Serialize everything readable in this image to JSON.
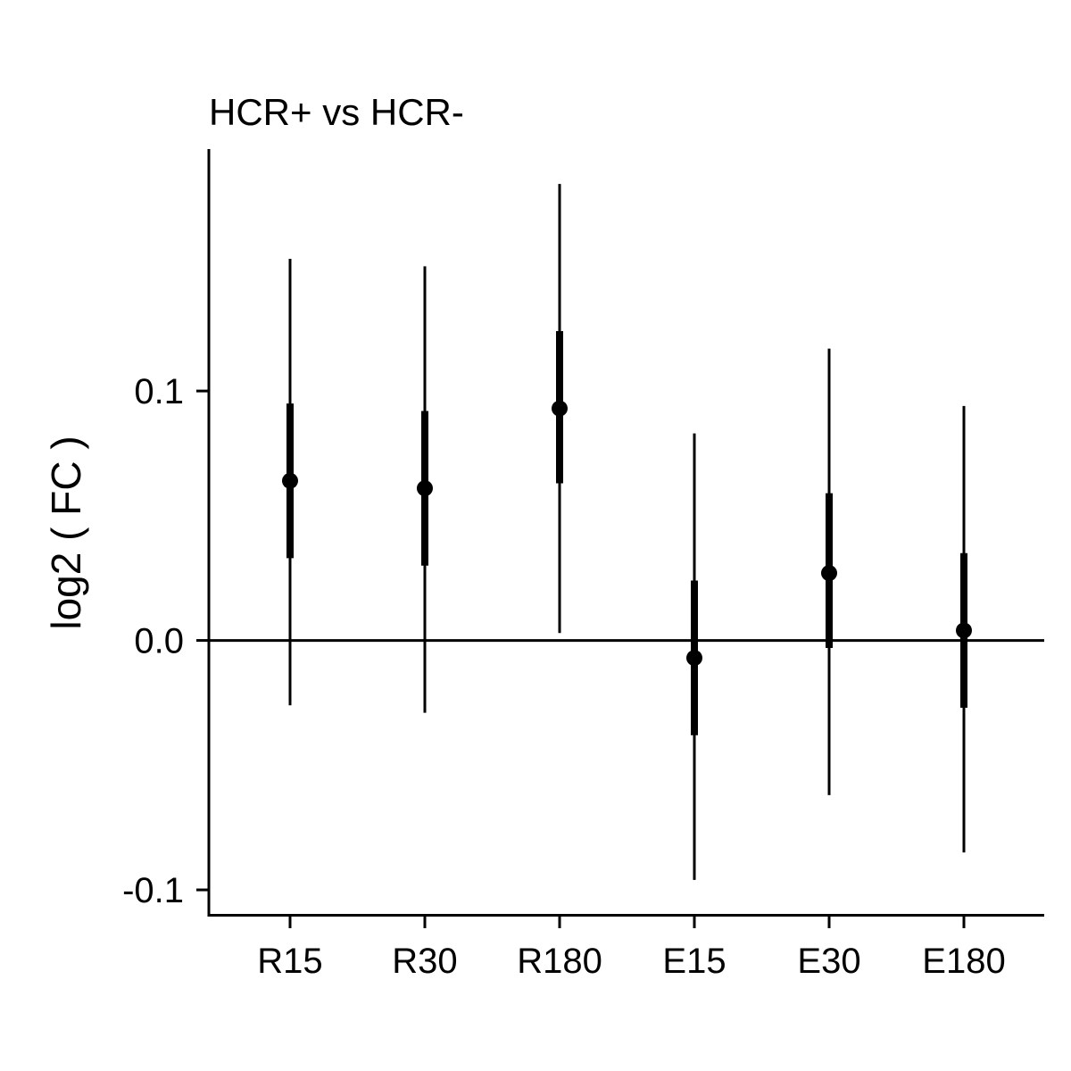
{
  "chart_data": {
    "type": "pointrange",
    "title": "HCR+ vs HCR-",
    "xlabel": "",
    "ylabel": "log2 ( FC )",
    "categories": [
      "R15",
      "R30",
      "R180",
      "E15",
      "E30",
      "E180"
    ],
    "estimate": [
      0.064,
      0.061,
      0.093,
      -0.007,
      0.027,
      0.004
    ],
    "inner_interval": [
      [
        0.033,
        0.095
      ],
      [
        0.03,
        0.092
      ],
      [
        0.063,
        0.124
      ],
      [
        -0.038,
        0.024
      ],
      [
        -0.003,
        0.059
      ],
      [
        -0.027,
        0.035
      ]
    ],
    "outer_interval": [
      [
        -0.026,
        0.153
      ],
      [
        -0.029,
        0.15
      ],
      [
        0.003,
        0.183
      ],
      [
        -0.096,
        0.083
      ],
      [
        -0.062,
        0.117
      ],
      [
        -0.085,
        0.094
      ]
    ],
    "yticks": [
      -0.1,
      0.0,
      0.1
    ],
    "ytick_labels": [
      "-0.1",
      "0.0",
      "0.1"
    ],
    "ylim": [
      -0.11,
      0.197
    ],
    "reference_line": 0.0,
    "grid": false,
    "legend": "none"
  }
}
